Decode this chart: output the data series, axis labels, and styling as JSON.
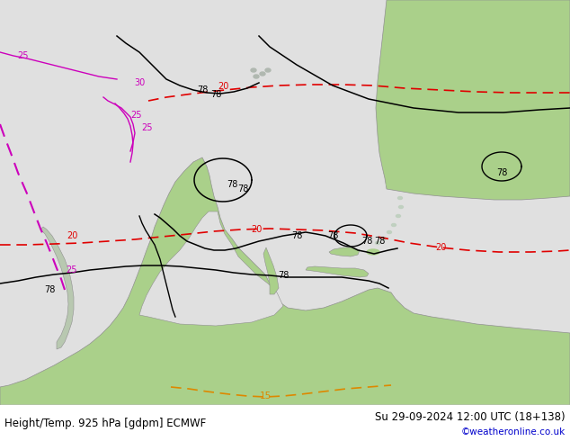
{
  "title_left": "Height/Temp. 925 hPa [gdpm] ECMWF",
  "title_right": "Su 29-09-2024 12:00 UTC (18+138)",
  "credit": "©weatheronline.co.uk",
  "bg_color": "#f0f0f0",
  "ocean_color": "#e0e0e0",
  "land_color_green": "#aad08a",
  "land_color_light": "#c8e0c0",
  "coast_color": "#909090",
  "fig_width": 6.34,
  "fig_height": 4.9,
  "dpi": 100,
  "title_fontsize": 8.5,
  "credit_fontsize": 7.5,
  "credit_color": "#0000cc",
  "black_color": "#000000",
  "red_color": "#e00000",
  "magenta_color": "#cc00bb",
  "orange_color": "#dd8800",
  "label_fontsize": 7
}
